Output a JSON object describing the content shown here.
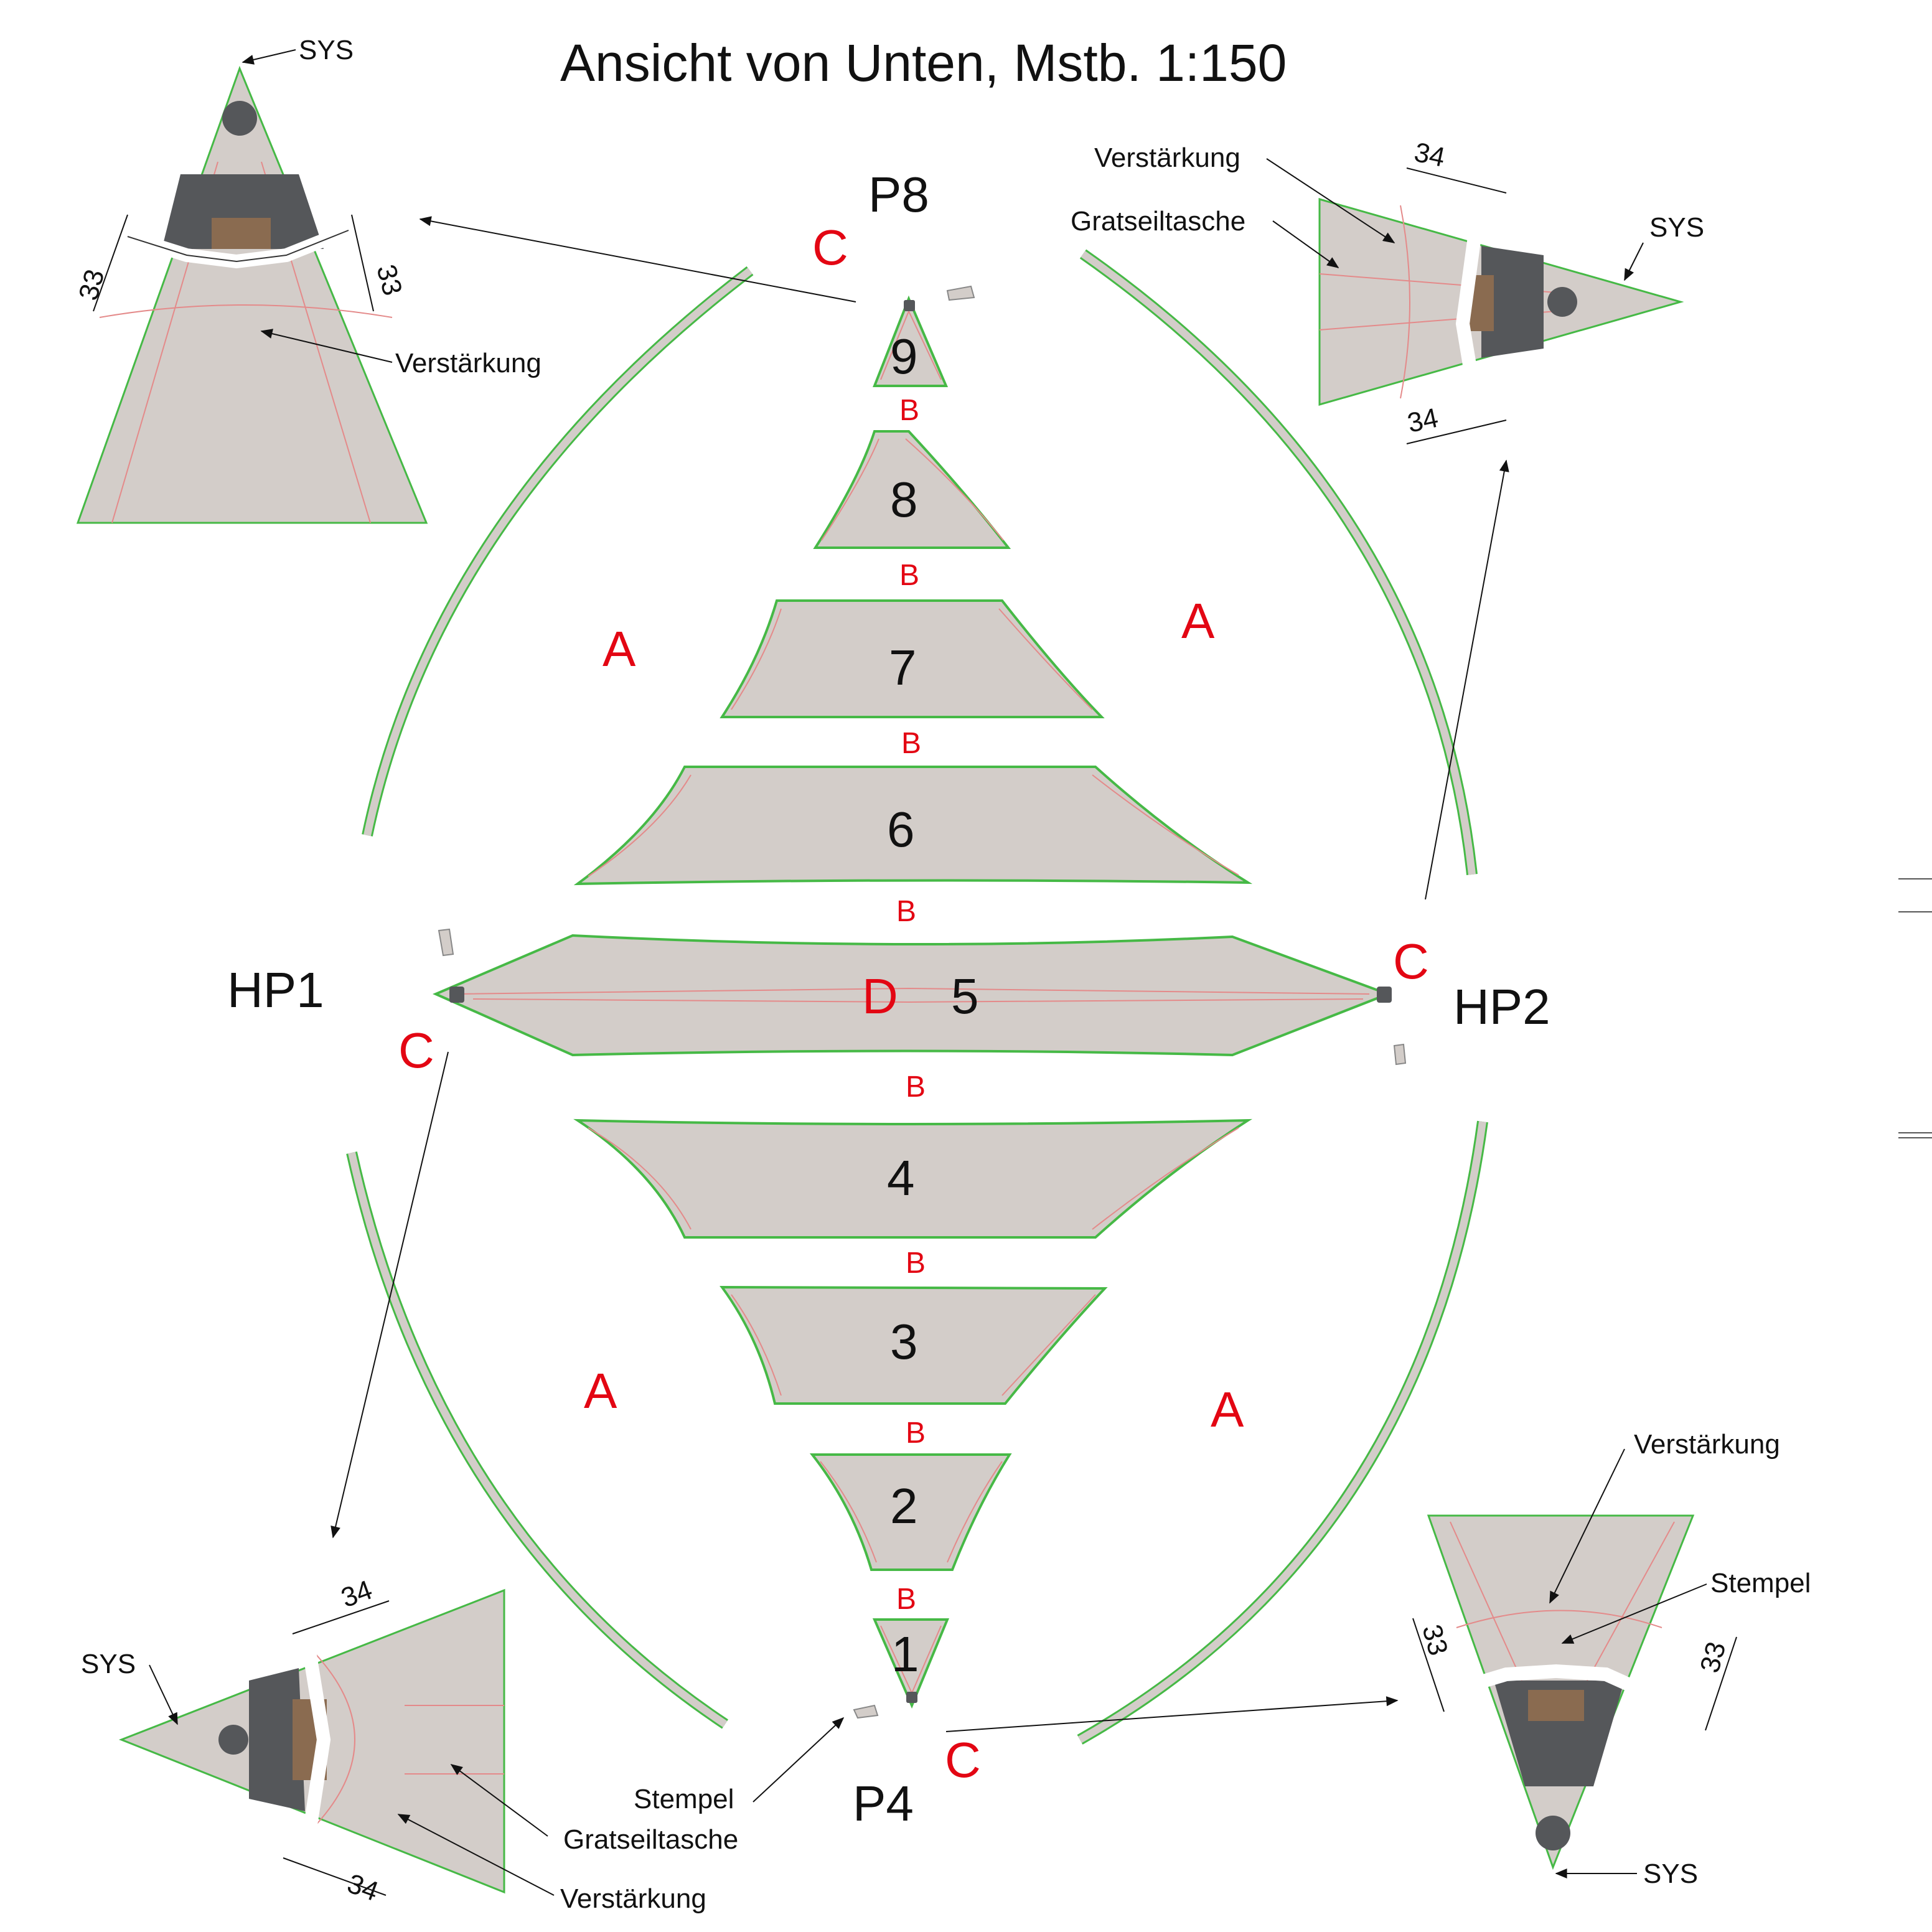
{
  "title": "Ansicht von Unten, Mstb. 1:150",
  "points": {
    "p8": "P8",
    "p4": "P4",
    "hp1": "HP1",
    "hp2": "HP2"
  },
  "panels": [
    "1",
    "2",
    "3",
    "4",
    "5",
    "6",
    "7",
    "8",
    "9"
  ],
  "seam_labels": {
    "a": "A",
    "b": "B",
    "c": "C",
    "d": "D"
  },
  "callouts": {
    "sys": "SYS",
    "verstaerkung": "Verstärkung",
    "gratseiltasche": "Gratseiltasche",
    "stempel": "Stempel"
  },
  "dimensions": {
    "d33": "33",
    "d34": "34"
  },
  "colors": {
    "panel_fill": "#d3cdc9",
    "panel_edge": "#46b946",
    "reinforcement_line": "#e48a8a",
    "seam_label": "#e30613",
    "hardware": "#55575a",
    "plate": "#8a6b50"
  }
}
